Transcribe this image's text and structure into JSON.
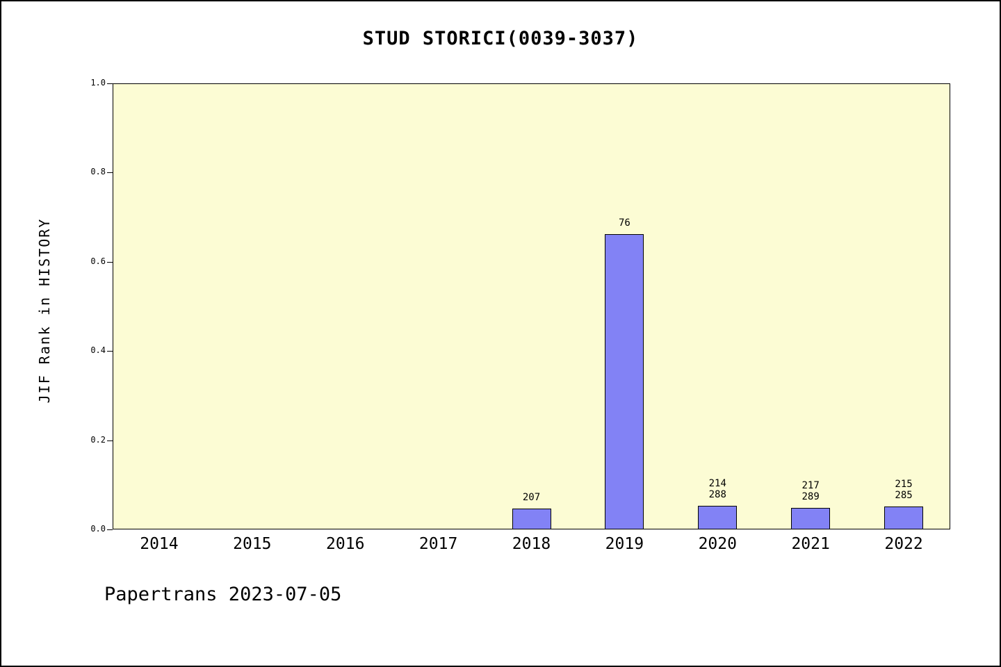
{
  "chart_data": {
    "type": "bar",
    "title": "STUD STORICI(0039-3037)",
    "ylabel": "JIF Rank in HISTORY",
    "xlabel": "",
    "footer": "Papertrans 2023-07-05",
    "categories": [
      "2014",
      "2015",
      "2016",
      "2017",
      "2018",
      "2019",
      "2020",
      "2021",
      "2022"
    ],
    "values": [
      null,
      null,
      null,
      null,
      0.046,
      0.662,
      0.053,
      0.048,
      0.052
    ],
    "bar_labels": [
      [],
      [],
      [],
      [],
      [
        "207"
      ],
      [
        "76"
      ],
      [
        "214",
        "288"
      ],
      [
        "217",
        "289"
      ],
      [
        "215",
        "285"
      ]
    ],
    "ylim": [
      0,
      1
    ],
    "ytick_values": [
      0.0,
      0.2,
      0.4,
      0.6,
      0.8,
      1.0
    ],
    "ytick_labels": [
      "0.0",
      "0.2",
      "0.4",
      "0.6",
      "0.8",
      "1.0"
    ],
    "grid": false,
    "legend": "none",
    "bar_color": "#8282f5",
    "plot_background": "#fcfcd4"
  }
}
